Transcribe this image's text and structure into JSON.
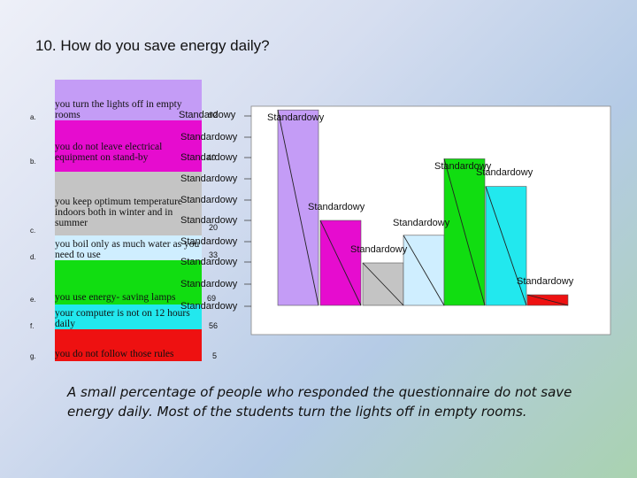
{
  "slide_title": "10. How do you save energy daily?",
  "caption": "A small percentage of people who responded the questionnaire do not save energy daily. Most of the students turn the lights off in empty rooms.",
  "placeholder_label": "Standardowy",
  "colors": {
    "a": "#c49cf6",
    "b": "#e60ccf",
    "c": "#c4c4c4",
    "d": "#cfeeff",
    "e": "#11dd11",
    "f": "#22e8ee",
    "g": "#ee1111"
  },
  "chart_data": {
    "type": "bar",
    "title": "10. How do you save energy daily?",
    "categories": [
      {
        "letter": "a.",
        "text": "you turn the lights off in empty rooms",
        "value": 92
      },
      {
        "letter": "b.",
        "text": "you do not leave electrical equipment on stand-by",
        "value": 40
      },
      {
        "letter": "c.",
        "text": "you keep optimum temperature indoors both in winter and in summer",
        "value": 20
      },
      {
        "letter": "d.",
        "text": "you boil only as much water as you need to use",
        "value": 33
      },
      {
        "letter": "e.",
        "text": "you use energy- saving lamps",
        "value": 69
      },
      {
        "letter": "f.",
        "text": "your computer is not on 12 hours daily",
        "value": 56
      },
      {
        "letter": "g.",
        "text": "you do not follow those rules",
        "value": 5
      }
    ],
    "series": [
      {
        "values": [
          92,
          40,
          20,
          33,
          69,
          56,
          5
        ]
      }
    ],
    "ylim": [
      0,
      100
    ],
    "grid": false,
    "legend": "none"
  }
}
